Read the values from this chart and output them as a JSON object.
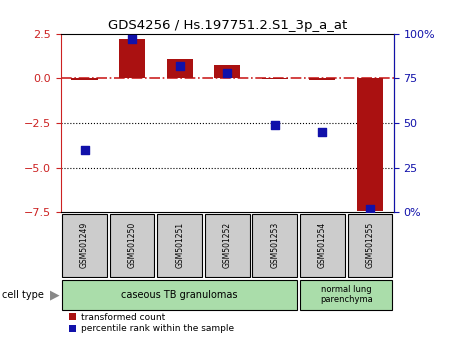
{
  "title": "GDS4256 / Hs.197751.2.S1_3p_a_at",
  "samples": [
    "GSM501249",
    "GSM501250",
    "GSM501251",
    "GSM501252",
    "GSM501253",
    "GSM501254",
    "GSM501255"
  ],
  "transformed_count": [
    -0.08,
    2.2,
    1.1,
    0.75,
    -0.05,
    -0.12,
    -7.4
  ],
  "percentile_rank": [
    35,
    97,
    82,
    78,
    49,
    45,
    2
  ],
  "left_ylim": [
    -7.5,
    2.5
  ],
  "right_ylim": [
    0,
    100
  ],
  "left_yticks": [
    2.5,
    0,
    -2.5,
    -5,
    -7.5
  ],
  "right_yticks": [
    0,
    25,
    50,
    75,
    100
  ],
  "bar_color": "#aa1111",
  "dot_color": "#1111aa",
  "hline_color": "#cc2222",
  "group1_label": "caseous TB granulomas",
  "group2_label": "normal lung\nparenchyma",
  "group1_color": "#aaddaa",
  "group2_color": "#aaddaa",
  "sample_box_color": "#cccccc",
  "cell_type_label": "cell type",
  "legend_red": "transformed count",
  "legend_blue": "percentile rank within the sample",
  "bar_width": 0.55,
  "dot_size": 40
}
